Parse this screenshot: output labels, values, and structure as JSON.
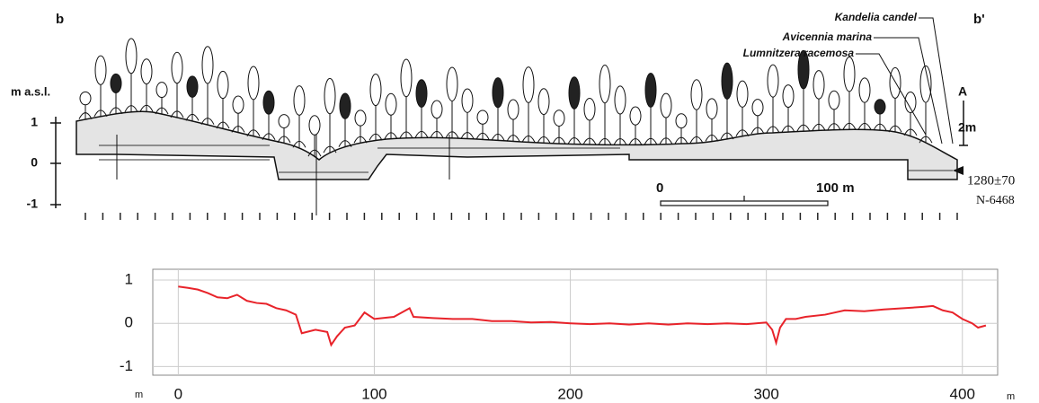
{
  "profile_drawing": {
    "panel_label": "b",
    "panel_label_end": "b'",
    "y_axis_label": "m a.s.l.",
    "y_tick_labels": [
      "1",
      "0",
      "-1"
    ],
    "species_labels": [
      "Kandelia candel",
      "Avicennia marina",
      "Lumnitzera racemosa"
    ],
    "height_scale": {
      "top": "A",
      "label": "2m"
    },
    "scale_bar": {
      "start": "0",
      "end": "100 m"
    },
    "dating": {
      "age": "1280±70",
      "sample": "N-6468"
    }
  },
  "chart_data": {
    "type": "line",
    "color": "#e8232a",
    "grid": true,
    "x_unit_labels": [
      "m",
      "m"
    ],
    "xlim": [
      -13,
      418
    ],
    "ylim": [
      -1.2,
      1.25
    ],
    "xticks": [
      0,
      100,
      200,
      300,
      400
    ],
    "yticks": [
      -1,
      0,
      1
    ],
    "series": [
      {
        "x": [
          0,
          5,
          10,
          15,
          20,
          25,
          30,
          35,
          40,
          45,
          50,
          55,
          60,
          63,
          70,
          76,
          78,
          81,
          85,
          90,
          95,
          100,
          110,
          118,
          120,
          130,
          140,
          150,
          160,
          170,
          180,
          190,
          200,
          210,
          220,
          230,
          240,
          250,
          260,
          270,
          280,
          290,
          300,
          303,
          305,
          307,
          310,
          315,
          320,
          330,
          340,
          350,
          360,
          370,
          380,
          385,
          390,
          395,
          400,
          405,
          408,
          412
        ],
        "values": [
          0.85,
          0.82,
          0.78,
          0.7,
          0.6,
          0.58,
          0.66,
          0.52,
          0.47,
          0.45,
          0.35,
          0.3,
          0.2,
          -0.23,
          -0.15,
          -0.2,
          -0.5,
          -0.3,
          -0.1,
          -0.05,
          0.25,
          0.1,
          0.15,
          0.35,
          0.15,
          0.12,
          0.1,
          0.1,
          0.05,
          0.05,
          0.02,
          0.03,
          0.0,
          -0.02,
          0.0,
          -0.03,
          0.0,
          -0.03,
          0.0,
          -0.02,
          0.0,
          -0.02,
          0.02,
          -0.15,
          -0.45,
          -0.1,
          0.1,
          0.1,
          0.15,
          0.2,
          0.3,
          0.28,
          0.32,
          0.35,
          0.38,
          0.4,
          0.3,
          0.25,
          0.1,
          0.0,
          -0.1,
          -0.05
        ]
      }
    ]
  }
}
